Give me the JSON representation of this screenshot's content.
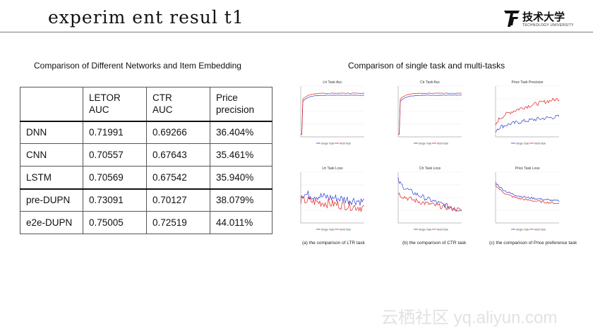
{
  "slide": {
    "title": "experim ent resul t1",
    "logo_cn": "技术大学",
    "logo_en": "TECHNOLOGY UNIVERSITY",
    "watermark": "云栖社区 yq.aliyun.com"
  },
  "table": {
    "caption": "Comparison of Different Networks and Item Embedding",
    "headers": [
      "",
      "LETOR\nAUC",
      "CTR\nAUC",
      "Price\nprecision"
    ],
    "rows": [
      [
        "DNN",
        "0.71991",
        "0.69266",
        "36.404%"
      ],
      [
        "CNN",
        "0.70557",
        "0.67643",
        "35.461%"
      ],
      [
        "LSTM",
        "0.70569",
        "0.67542",
        "35.940%"
      ],
      [
        "pre-DUPN",
        "0.73091",
        "0.70127",
        "38.079%"
      ],
      [
        "e2e-DUPN",
        "0.75005",
        "0.72519",
        "44.011%"
      ]
    ]
  },
  "figure": {
    "caption": "Comparison of single task and multi-tasks",
    "colors": {
      "single": "#2b3fd6",
      "multi": "#e02020"
    },
    "plots": [
      {
        "title": "Ltr Task Auc",
        "legend": [
          "Single Task",
          "Multi Task"
        ],
        "kind": "auc"
      },
      {
        "title": "Ctr Task Auc",
        "legend": [
          "Single Task",
          "Multi Task"
        ],
        "kind": "auc"
      },
      {
        "title": "Price Task Precision",
        "legend": [
          "Single Task",
          "Multi Task"
        ],
        "kind": "prec"
      },
      {
        "title": "Ltr Task Loss",
        "legend": [
          "Single Task",
          "Multi Task"
        ],
        "kind": "loss1"
      },
      {
        "title": "Ctr Task Loss",
        "legend": [
          "Single Task",
          "Multi Task"
        ],
        "kind": "loss2"
      },
      {
        "title": "Price Task Loss",
        "legend": [
          "Single Task",
          "Multi Task"
        ],
        "kind": "loss3"
      }
    ],
    "subcaptions": [
      "(a) the comparison of LTR task",
      "(b) the comparison of CTR task",
      "(c) the comparison of Price preference task"
    ]
  }
}
